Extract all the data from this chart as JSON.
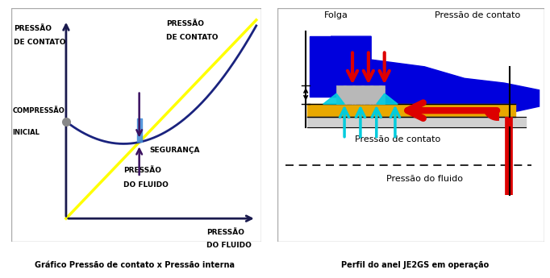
{
  "left_panel": {
    "label_y_top": "PRESSÃO",
    "label_y_bot": "DE CONTATO",
    "label_x_right1": "PRESSÃO",
    "label_x_right2": "DO FLUIDO",
    "label_pc_top1": "PRESSÃO",
    "label_pc_top2": "DE CONTATO",
    "label_compressao1": "COMPRESSÃO",
    "label_compressao2": "INICIAL",
    "label_seguranca": "SEGURANÇA",
    "label_pf1": "PRESSÃO",
    "label_pf2": "DO FLUIDO",
    "caption": "Gráfico Pressão de contato x Pressão interna",
    "curve_color": "#1a237e",
    "line_color": "#ffff00",
    "dot_color": "#888888"
  },
  "right_panel": {
    "caption": "Perfil do anel JE2GS em operação",
    "label_folga": "Folga",
    "label_pc_top": "Pressão de contato",
    "label_pc_bot": "Pressão de contato",
    "label_pf": "Pressão do fluido",
    "blue_color": "#0000dd",
    "red_color": "#dd0000",
    "cyan_color": "#00ccdd",
    "gold_color": "#e8a800",
    "lightgray_color": "#d0d0d0",
    "darkgray_color": "#888888"
  },
  "bg_color": "#ffffff",
  "border_color": "#aaaaaa"
}
